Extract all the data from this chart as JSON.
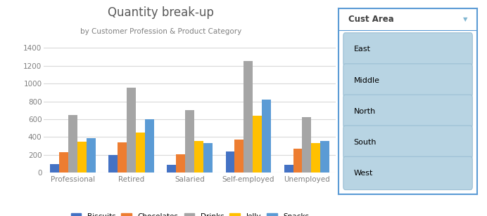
{
  "title": "Quantity break-up",
  "subtitle": "by Customer Profession & Product Category",
  "categories": [
    "Professional",
    "Retired",
    "Salaried",
    "Self-employed",
    "Unemployed"
  ],
  "series": {
    "Biscuits": [
      100,
      200,
      90,
      240,
      90
    ],
    "Chocolates": [
      230,
      340,
      210,
      370,
      270
    ],
    "Drinks": [
      650,
      950,
      700,
      1250,
      620
    ],
    "Jelly": [
      350,
      450,
      360,
      640,
      335
    ],
    "Snacks": [
      385,
      600,
      330,
      820,
      360
    ]
  },
  "bar_colors": [
    "#4472C4",
    "#ED7D31",
    "#A5A5A5",
    "#FFC000",
    "#5B9BD5"
  ],
  "ylim": [
    0,
    1500
  ],
  "yticks": [
    0,
    200,
    400,
    600,
    800,
    1000,
    1200,
    1400
  ],
  "background_color": "#FFFFFF",
  "plot_bg_color": "#FFFFFF",
  "grid_color": "#D9D9D9",
  "slicer_title": "Cust Area",
  "slicer_items": [
    "East",
    "Middle",
    "North",
    "South",
    "West"
  ],
  "slicer_bg": "#B8D4E3",
  "slicer_border": "#5B9BD5",
  "slicer_title_bg": "#FFFFFF",
  "slicer_text_color": "#000000",
  "title_color": "#595959",
  "subtitle_color": "#808080",
  "tick_color": "#808080"
}
